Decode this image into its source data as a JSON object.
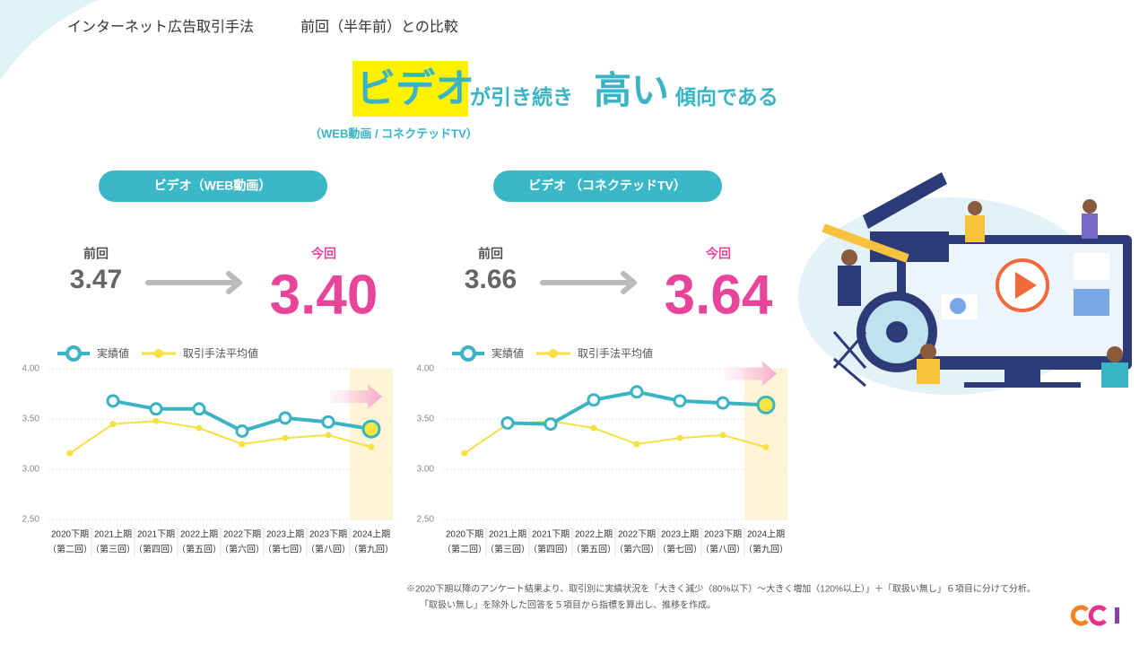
{
  "header": {
    "title": "インターネット広告取引手法",
    "subtitle": "前回（半年前）との比較"
  },
  "headline": {
    "highlight": "ビデオ",
    "middle": "が引き続き",
    "emphasis": "高い",
    "ending": "傾向である",
    "note": "（WEB動画 / コネクテッドTV）"
  },
  "chart_data": [
    {
      "type": "line",
      "title": "ビデオ（WEB動画）",
      "comparison": {
        "previous_label": "前回",
        "previous": "3.47",
        "current_label": "今回",
        "current": "3.40"
      },
      "categories": [
        "2020下期",
        "2021上期",
        "2021下期",
        "2022上期",
        "2022下期",
        "2023上期",
        "2023下期",
        "2024上期"
      ],
      "category_sublabels": [
        "（第二回）",
        "（第三回）",
        "（第四回）",
        "（第五回）",
        "（第六回）",
        "（第七回）",
        "（第八回）",
        "（第九回）"
      ],
      "series": [
        {
          "name": "実績値",
          "color": "#3ab4c4",
          "values": [
            null,
            3.68,
            3.6,
            3.6,
            3.38,
            3.51,
            3.47,
            3.4
          ]
        },
        {
          "name": "取引手法平均値",
          "color": "#f7e040",
          "values": [
            3.16,
            3.45,
            3.48,
            3.41,
            3.25,
            3.31,
            3.34,
            3.22
          ]
        }
      ],
      "ylim": [
        2.5,
        4.0
      ],
      "yticks": [
        {
          "value": 2.5,
          "label": "2.50"
        },
        {
          "value": 3.0,
          "label": "3.00"
        },
        {
          "value": 3.5,
          "label": "3.50"
        },
        {
          "value": 4.0,
          "label": "4.00"
        }
      ],
      "grid": true
    },
    {
      "type": "line",
      "title": "ビデオ （コネクテッドTV）",
      "comparison": {
        "previous_label": "前回",
        "previous": "3.66",
        "current_label": "今回",
        "current": "3.64"
      },
      "categories": [
        "2020下期",
        "2021上期",
        "2021下期",
        "2022上期",
        "2022下期",
        "2023上期",
        "2023下期",
        "2024上期"
      ],
      "category_sublabels": [
        "（第二回）",
        "（第三回）",
        "（第四回）",
        "（第五回）",
        "（第六回）",
        "（第七回）",
        "（第八回）",
        "（第九回）"
      ],
      "series": [
        {
          "name": "実績値",
          "color": "#3ab4c4",
          "values": [
            null,
            3.46,
            3.45,
            3.69,
            3.77,
            3.68,
            3.66,
            3.64
          ]
        },
        {
          "name": "取引手法平均値",
          "color": "#f7e040",
          "values": [
            3.16,
            3.45,
            3.48,
            3.41,
            3.25,
            3.31,
            3.34,
            3.22
          ]
        }
      ],
      "ylim": [
        2.5,
        4.0
      ],
      "yticks": [
        {
          "value": 2.5,
          "label": "2.50"
        },
        {
          "value": 3.0,
          "label": "3.00"
        },
        {
          "value": 3.5,
          "label": "3.50"
        },
        {
          "value": 4.0,
          "label": "4.00"
        }
      ],
      "grid": true
    }
  ],
  "footnote": [
    "※2020下期以降のアンケート結果より、取引別に実績状況を「大きく減少（80%以下）～大きく増加（120%以上）」＋「取扱い無し」６項目に分けて分析。",
    "「取扱い無し」を除外した回答を５項目から指標を算出し、推移を作成。"
  ]
}
